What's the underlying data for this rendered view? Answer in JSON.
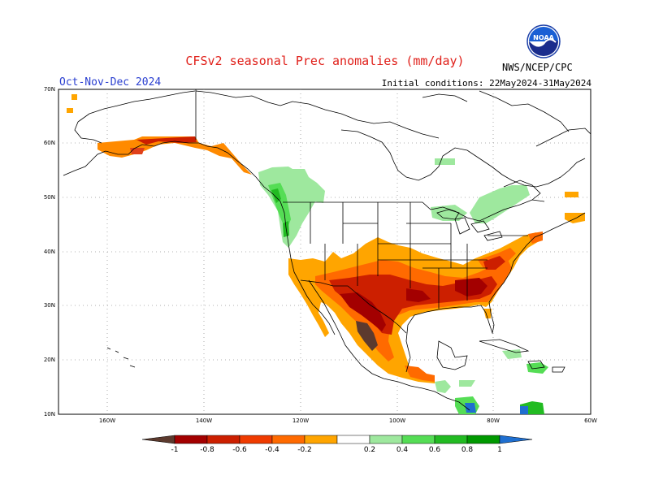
{
  "title": "CFSv2 seasonal Prec anomalies (mm/day)",
  "season": "Oct-Nov-Dec 2024",
  "initial_conditions": "Initial conditions: 22May2024-31May2024",
  "agency": "NWS/NCEP/CPC",
  "logo": {
    "icon": "noaa-logo-icon",
    "text": "NOAA"
  },
  "lat_labels": [
    "70N",
    "60N",
    "50N",
    "40N",
    "30N",
    "20N",
    "10N"
  ],
  "lon_labels": [
    "160W",
    "140W",
    "120W",
    "100W",
    "80W",
    "60W"
  ],
  "colorbar": {
    "labels": [
      "-1",
      "-0.8",
      "-0.6",
      "-0.4",
      "-0.2",
      "0.2",
      "0.4",
      "0.6",
      "0.8",
      "1"
    ],
    "colors": [
      "#5c3a2e",
      "#a30000",
      "#cc1f00",
      "#ef3b00",
      "#ff6a00",
      "#ffa500",
      "#ffffff",
      "#9ee89e",
      "#55dd55",
      "#22bb22",
      "#009900",
      "#1f6fd0"
    ]
  },
  "anomaly_colors": {
    "drier_strong": "#5c3a2e",
    "dry_dark": "#a30000",
    "dry": "#cc1f00",
    "dry_light": "#ef3b00",
    "dry_orange": "#ff6a00",
    "dry_light_orange": "#ffa500",
    "wet_light": "#9ee89e",
    "wet": "#55dd55",
    "wet_dark": "#22bb22",
    "wet_strong": "#1f6fd0"
  }
}
